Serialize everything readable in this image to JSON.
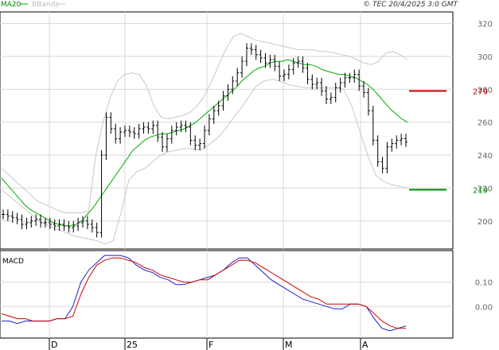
{
  "header": {
    "copyright": "© TEC 20/4/2025 3:0 GMT",
    "legend_ma": "MA20",
    "legend_bb": "BBands"
  },
  "macd_panel": {
    "title": "MACD"
  },
  "colors": {
    "ma20": "#00aa00",
    "bbands": "#c8c8c8",
    "bars": "#000000",
    "resistance": "#cc0000",
    "support": "#008800",
    "macd": "#1f1fcc",
    "signal": "#cc0000",
    "grid": "#d8d8d8"
  },
  "chart_data": [
    {
      "type": "ohlc",
      "panel": "price",
      "y_ticks": [
        200,
        220,
        240,
        260,
        280,
        300,
        320
      ],
      "ylim": [
        183,
        327
      ],
      "x_ticks": [
        "D",
        "25",
        "F",
        "M",
        "A"
      ],
      "levels": [
        {
          "label": "279",
          "value": 279,
          "color": "#cc0000"
        },
        {
          "label": "219",
          "value": 219,
          "color": "#008800"
        }
      ],
      "closes": [
        204,
        203,
        202,
        201,
        198,
        199,
        200,
        201,
        199,
        199,
        198,
        197,
        198,
        197,
        196,
        197,
        199,
        200,
        198,
        196,
        193,
        240,
        263,
        256,
        250,
        254,
        255,
        254,
        253,
        256,
        257,
        256,
        258,
        251,
        245,
        250,
        255,
        257,
        258,
        257,
        249,
        246,
        247,
        255,
        262,
        267,
        270,
        276,
        280,
        285,
        290,
        297,
        305,
        304,
        301,
        299,
        296,
        298,
        294,
        288,
        289,
        292,
        296,
        297,
        293,
        286,
        283,
        284,
        279,
        274,
        275,
        281,
        284,
        287,
        287,
        289,
        282,
        278,
        267,
        249,
        236,
        232,
        245,
        247,
        249,
        250,
        248
      ],
      "ma20": [
        226,
        222,
        218,
        214,
        210,
        207,
        205,
        203,
        201,
        199,
        198,
        197,
        197,
        198,
        200,
        204,
        208,
        213,
        218,
        223,
        228,
        233,
        238,
        243,
        246,
        249,
        251,
        252,
        253,
        253,
        254,
        255,
        256,
        258,
        260,
        263,
        266,
        269,
        272,
        275,
        278,
        281,
        285,
        288,
        291,
        293,
        294,
        296,
        297,
        297,
        298,
        297,
        296,
        295,
        295,
        294,
        292,
        291,
        290,
        289,
        289,
        288,
        287,
        285,
        283,
        280,
        276,
        272,
        268,
        265,
        262,
        260
      ],
      "bb_upper": [
        232,
        228,
        224,
        220,
        216,
        212,
        210,
        208,
        206,
        205,
        205,
        205,
        206,
        240,
        260,
        275,
        285,
        289,
        290,
        289,
        282,
        270,
        263,
        262,
        263,
        264,
        266,
        270,
        276,
        285,
        295,
        305,
        312,
        314,
        312,
        310,
        309,
        308,
        307,
        306,
        305,
        304,
        304,
        304,
        303,
        303,
        302,
        301,
        300,
        298,
        296,
        295,
        297,
        302,
        303,
        301,
        298
      ],
      "bb_lower": [
        219,
        215,
        211,
        207,
        203,
        199,
        197,
        195,
        193,
        191,
        190,
        189,
        188,
        186,
        188,
        205,
        225,
        230,
        232,
        236,
        240,
        242,
        243,
        244,
        244,
        243,
        246,
        250,
        255,
        262,
        268,
        275,
        282,
        285,
        286,
        285,
        283,
        282,
        281,
        281,
        281,
        281,
        281,
        280,
        270,
        255,
        240,
        228,
        224,
        222,
        221,
        220
      ]
    },
    {
      "type": "line",
      "panel": "macd",
      "title": "MACD",
      "y_ticks": [
        "0.10",
        "0.00"
      ],
      "ylim": [
        -0.13,
        0.23
      ],
      "series": [
        {
          "values": [
            -0.06,
            -0.06,
            -0.07,
            -0.06,
            -0.06,
            -0.06,
            -0.06,
            -0.05,
            -0.05,
            0.0,
            0.1,
            0.15,
            0.18,
            0.21,
            0.21,
            0.21,
            0.2,
            0.17,
            0.15,
            0.14,
            0.12,
            0.11,
            0.09,
            0.09,
            0.1,
            0.11,
            0.12,
            0.13,
            0.15,
            0.18,
            0.2,
            0.2,
            0.17,
            0.14,
            0.11,
            0.09,
            0.07,
            0.05,
            0.03,
            0.02,
            0.01,
            0.0,
            -0.01,
            -0.01,
            0.01,
            0.01,
            0.0,
            -0.05,
            -0.09,
            -0.1,
            -0.09,
            -0.08
          ]
        },
        {
          "values": [
            -0.03,
            -0.04,
            -0.05,
            -0.05,
            -0.06,
            -0.06,
            -0.06,
            -0.05,
            -0.05,
            -0.04,
            0.05,
            0.12,
            0.17,
            0.19,
            0.2,
            0.2,
            0.19,
            0.18,
            0.16,
            0.15,
            0.13,
            0.12,
            0.11,
            0.1,
            0.1,
            0.11,
            0.11,
            0.13,
            0.15,
            0.17,
            0.19,
            0.19,
            0.18,
            0.16,
            0.14,
            0.12,
            0.1,
            0.08,
            0.06,
            0.04,
            0.03,
            0.01,
            0.01,
            0.01,
            0.01,
            0.01,
            0.0,
            -0.03,
            -0.06,
            -0.08,
            -0.09,
            -0.09
          ]
        }
      ]
    }
  ]
}
